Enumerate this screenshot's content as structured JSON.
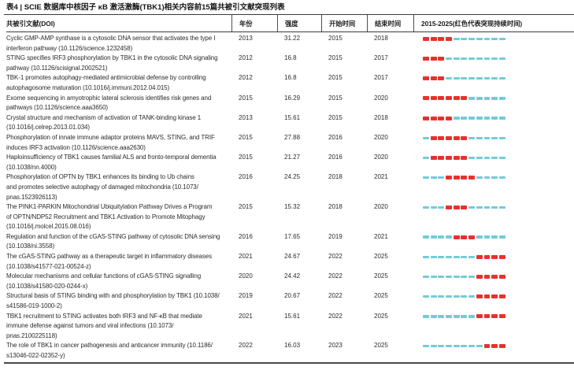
{
  "table": {
    "title": "表4 | SCIE 数据库中核因子 κB 激活激酶(TBK1)相关内容前15篇共被引文献突现列表",
    "headers": {
      "reference": "共被引文献(DOI)",
      "year": "年份",
      "strength": "强度",
      "begin": "开始时间",
      "end": "结束时间",
      "timeline": "2015-2025(红色代表突现持续时间)"
    },
    "timeline": {
      "start_year": 2015,
      "end_year": 2025,
      "burst_color": "#e8312c",
      "base_color": "#72ccd6"
    },
    "rows": [
      {
        "reference": "Cyclic GMP-AMP synthase is a cytosolic DNA sensor that activates the type I\ninterferon pathway (10.1126/science.1232458)",
        "year": "2013",
        "strength": "31.22",
        "begin": "2015",
        "end": "2018"
      },
      {
        "reference": "STING specifies IRF3 phosphorylation by TBK1 in the cytosolic DNA signaling\npathway (10.1126/scisignal.2002521)",
        "year": "2012",
        "strength": "16.8",
        "begin": "2015",
        "end": "2017"
      },
      {
        "reference": "TBK-1 promotes autophagy-mediated antimicrobial defense by controlling\nautophagosome maturation (10.1016/j.immuni.2012.04.015)",
        "year": "2012",
        "strength": "16.8",
        "begin": "2015",
        "end": "2017"
      },
      {
        "reference": "Exome sequencing in amyotrophic lateral sclerosis identifies risk genes and\npathways (10.1126/science.aaa3650)",
        "year": "2015",
        "strength": "16.29",
        "begin": "2015",
        "end": "2020"
      },
      {
        "reference": "Crystal structure and mechanism of activation of TANK-binding kinase 1\n(10.1016/j.celrep.2013.01.034)",
        "year": "2013",
        "strength": "15.61",
        "begin": "2015",
        "end": "2018"
      },
      {
        "reference": "Phosphorylation of innate immune adaptor proteins MAVS, STING, and TRIF\ninduces IRF3 activation (10.1126/science.aaa2630)",
        "year": "2015",
        "strength": "27.88",
        "begin": "2016",
        "end": "2020"
      },
      {
        "reference": "Haploinsufficiency of TBK1 causes familial ALS and fronto-temporal dementia\n(10.1038/nn.4000)",
        "year": "2015",
        "strength": "21.27",
        "begin": "2016",
        "end": "2020"
      },
      {
        "reference": "Phosphorylation of OPTN by TBK1 enhances its binding to Ub chains\nand promotes selective autophagy of damaged mitochondria (10.1073/\npnas.1523926113)",
        "year": "2016",
        "strength": "24.25",
        "begin": "2018",
        "end": "2021"
      },
      {
        "reference": "The PINK1-PARKIN Mitochondrial Ubiquitylation Pathway Drives a Program\nof OPTN/NDP52 Recruitment and TBK1 Activation to Promote Mitophagy\n(10.1016/j.molcel.2015.08.016)",
        "year": "2015",
        "strength": "15.32",
        "begin": "2018",
        "end": "2020"
      },
      {
        "reference": "Regulation and function of the cGAS-STING pathway of cytosolic DNA sensing\n(10.1038/ni.3558)",
        "year": "2016",
        "strength": "17.65",
        "begin": "2019",
        "end": "2021"
      },
      {
        "reference": "The cGAS-STING pathway as a therapeutic target in inflammatory diseases\n(10.1038/s41577-021-00524-z)",
        "year": "2021",
        "strength": "24.67",
        "begin": "2022",
        "end": "2025"
      },
      {
        "reference": "Molecular mechanisms and cellular functions of cGAS-STING signalling\n(10.1038/s41580-020-0244-x)",
        "year": "2020",
        "strength": "24.42",
        "begin": "2022",
        "end": "2025"
      },
      {
        "reference": "Structural basis of STING binding with and phosphorylation by TBK1 (10.1038/\ns41586-019-1000-2)",
        "year": "2019",
        "strength": "20.67",
        "begin": "2022",
        "end": "2025"
      },
      {
        "reference": "TBK1 recruitment to STING activates both IRF3 and NF-κB that mediate\nimmune defense against tumors and viral infections (10.1073/\npnas.2100225118)",
        "year": "2021",
        "strength": "15.61",
        "begin": "2022",
        "end": "2025"
      },
      {
        "reference": "The role of TBK1 in cancer pathogenesis and anticancer immunity (10.1186/\ns13046-022-02352-y)",
        "year": "2022",
        "strength": "16.03",
        "begin": "2023",
        "end": "2025"
      }
    ]
  }
}
